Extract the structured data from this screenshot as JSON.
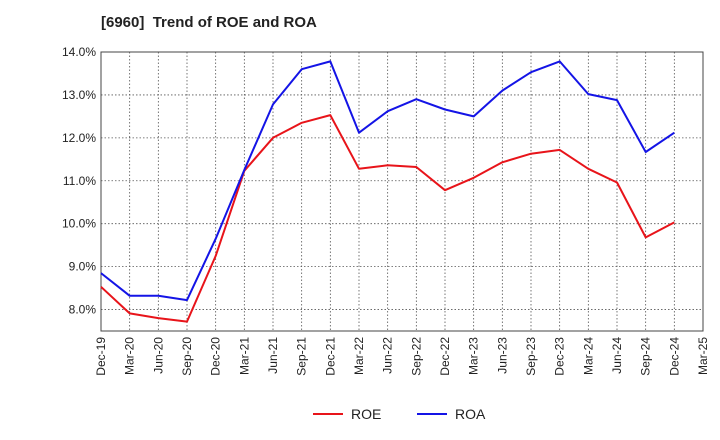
{
  "chart_data": {
    "type": "line",
    "title": "[6960]  Trend of ROE and ROA",
    "xlabel": "",
    "ylabel": "",
    "categories": [
      "Dec-19",
      "Mar-20",
      "Jun-20",
      "Sep-20",
      "Dec-20",
      "Mar-21",
      "Jun-21",
      "Sep-21",
      "Dec-21",
      "Mar-22",
      "Jun-22",
      "Sep-22",
      "Dec-22",
      "Mar-23",
      "Jun-23",
      "Sep-23",
      "Dec-23",
      "Mar-24",
      "Jun-24",
      "Sep-24",
      "Dec-24",
      "Mar-25"
    ],
    "ylim": [
      7.5,
      14.0
    ],
    "yticks": [
      8.0,
      9.0,
      10.0,
      11.0,
      12.0,
      13.0,
      14.0
    ],
    "ytick_labels": [
      "8.0%",
      "9.0%",
      "10.0%",
      "11.0%",
      "12.0%",
      "13.0%",
      "14.0%"
    ],
    "grid": true,
    "legend_position": "bottom",
    "series": [
      {
        "name": "ROE",
        "color": "#e8141a",
        "values": [
          8.53,
          7.91,
          7.8,
          7.72,
          9.25,
          11.23,
          12.0,
          12.35,
          12.53,
          11.28,
          11.36,
          11.32,
          10.78,
          11.07,
          11.43,
          11.63,
          11.72,
          11.28,
          10.96,
          9.68,
          10.03,
          null
        ]
      },
      {
        "name": "ROA",
        "color": "#1414e6",
        "values": [
          8.85,
          8.32,
          8.32,
          8.22,
          9.65,
          11.25,
          12.78,
          13.6,
          13.78,
          12.12,
          12.62,
          12.9,
          12.66,
          12.5,
          13.1,
          13.53,
          13.78,
          13.02,
          12.88,
          11.67,
          12.12,
          null
        ]
      }
    ]
  }
}
